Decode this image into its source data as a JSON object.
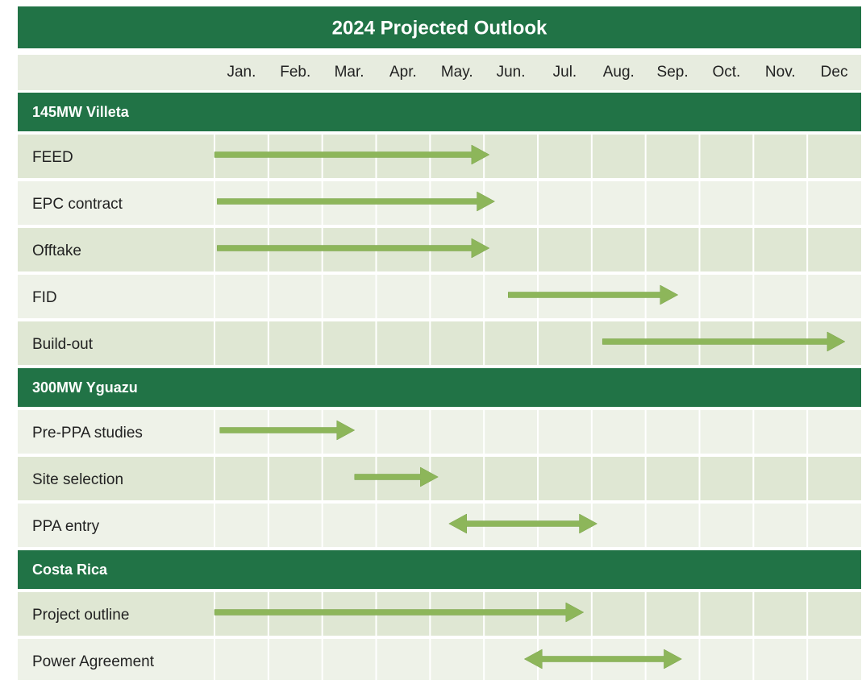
{
  "chart_data": {
    "type": "gantt",
    "title": "2024 Projected Outlook",
    "categories": [
      "Jan.",
      "Feb.",
      "Mar.",
      "Apr.",
      "May.",
      "Jun.",
      "Jul.",
      "Aug.",
      "Sep.",
      "Oct.",
      "Nov.",
      "Dec"
    ],
    "xlim": [
      0,
      12
    ],
    "color": "#8db65a",
    "header_color": "#217346",
    "groups": [
      {
        "name": "145MW Villeta",
        "tasks": [
          {
            "name": "FEED",
            "start": 0,
            "end": 5.1,
            "arrow": "end"
          },
          {
            "name": "EPC contract",
            "start": 0.05,
            "end": 5.2,
            "arrow": "end"
          },
          {
            "name": "Offtake",
            "start": 0.05,
            "end": 5.1,
            "arrow": "end"
          },
          {
            "name": "FID",
            "start": 5.45,
            "end": 8.6,
            "arrow": "end"
          },
          {
            "name": "Build-out",
            "start": 7.2,
            "end": 11.7,
            "arrow": "end"
          }
        ]
      },
      {
        "name": "300MW Yguazu",
        "tasks": [
          {
            "name": "Pre-PPA studies",
            "start": 0.1,
            "end": 2.6,
            "arrow": "end"
          },
          {
            "name": "Site selection",
            "start": 2.6,
            "end": 4.15,
            "arrow": "end"
          },
          {
            "name": "PPA entry",
            "start": 4.35,
            "end": 7.1,
            "arrow": "both"
          }
        ]
      },
      {
        "name": "Costa Rica",
        "tasks": [
          {
            "name": "Project outline",
            "start": 0,
            "end": 6.85,
            "arrow": "end"
          },
          {
            "name": "Power Agreement",
            "start": 5.75,
            "end": 8.67,
            "arrow": "both"
          }
        ]
      }
    ]
  }
}
